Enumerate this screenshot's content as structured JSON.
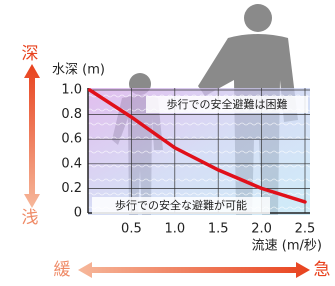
{
  "chart_data": {
    "type": "line",
    "y_label": "水深 (m)",
    "x_label": "流速 (m/秒)",
    "deep_label": "深",
    "shallow_label": "浅",
    "slow_label": "緩",
    "fast_label": "急",
    "annotation_danger": "歩行での安全避難は困難",
    "annotation_safe": "歩行での安全な避難が可能",
    "x": [
      0.02,
      0.5,
      1.0,
      1.5,
      2.0,
      2.5
    ],
    "series": [
      {
        "color": "#e0101a",
        "values": [
          1.0,
          0.78,
          0.53,
          0.35,
          0.2,
          0.09
        ]
      }
    ],
    "xlim": [
      0,
      2.5
    ],
    "ylim": [
      0,
      1.0
    ],
    "xticks": [
      0.5,
      {
        "value": 1,
        "label": "1.0"
      },
      1.5,
      {
        "value": 2,
        "label": "2.0"
      },
      2.5
    ],
    "yticks": [
      0,
      0.2,
      0.4,
      0.6,
      0.8,
      {
        "value": 1,
        "label": "1.0"
      }
    ],
    "grid": true
  }
}
